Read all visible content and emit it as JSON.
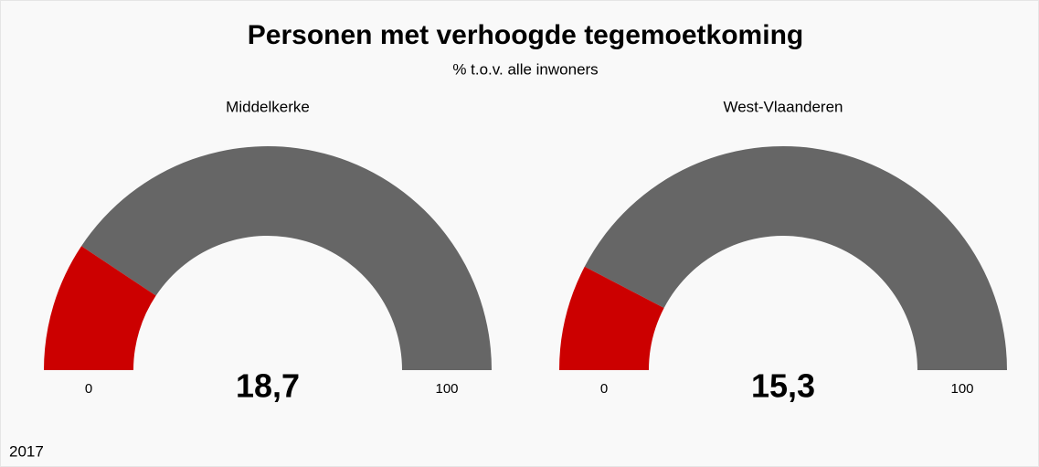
{
  "title": "Personen met verhoogde tegemoetkoming",
  "subtitle": "% t.o.v. alle inwoners",
  "footnote": "2017",
  "chart_data": [
    {
      "type": "gauge",
      "title": "Middelkerke",
      "values": [
        18.7
      ],
      "value_labels": [
        "18,7"
      ],
      "color": "#cc0000",
      "track_color": "#666666",
      "ylim": [
        0,
        100
      ],
      "yticks": [
        0,
        100
      ]
    },
    {
      "type": "gauge",
      "title": "West-Vlaanderen",
      "values": [
        15.3
      ],
      "value_labels": [
        "15,3"
      ],
      "color": "#cc0000",
      "track_color": "#666666",
      "ylim": [
        0,
        100
      ],
      "yticks": [
        0,
        100
      ]
    }
  ]
}
